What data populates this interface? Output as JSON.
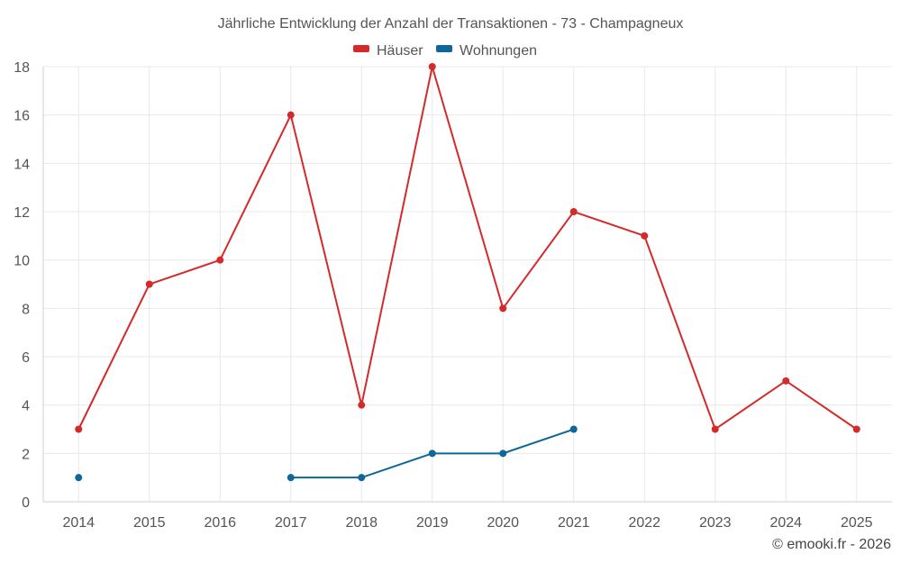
{
  "chart_data": {
    "type": "line",
    "title": "Jährliche Entwicklung der Anzahl der Transaktionen - 73 - Champagneux",
    "categories": [
      "2014",
      "2015",
      "2016",
      "2017",
      "2018",
      "2019",
      "2020",
      "2021",
      "2022",
      "2023",
      "2024",
      "2025"
    ],
    "y_ticks": [
      "0",
      "2",
      "4",
      "6",
      "8",
      "10",
      "12",
      "14",
      "16",
      "18"
    ],
    "ylim": [
      0,
      18
    ],
    "grid": true,
    "legend_position": "top-center",
    "series": [
      {
        "name": "Häuser",
        "color": "#d42a2a",
        "values": [
          3,
          9,
          10,
          16,
          4,
          18,
          8,
          12,
          11,
          3,
          5,
          3
        ]
      },
      {
        "name": "Wohnungen",
        "color": "#0e6699",
        "values": [
          1,
          null,
          null,
          1,
          1,
          2,
          2,
          3,
          null,
          null,
          null,
          null
        ]
      }
    ],
    "credit": "© emooki.fr - 2026"
  }
}
